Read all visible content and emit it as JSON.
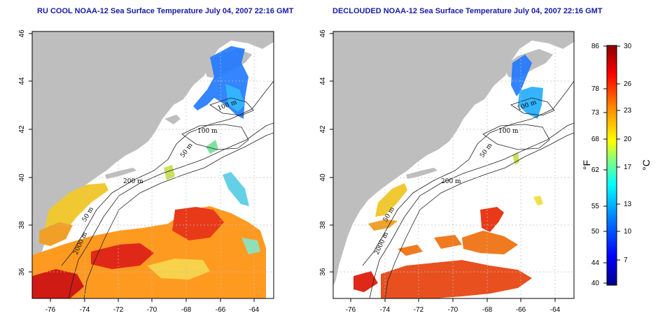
{
  "panels": [
    {
      "title": "RU COOL NOAA-12 Sea Surface Temperature July 04, 2007 22:16 GMT",
      "x_ticks": [
        "-76",
        "-74",
        "-72",
        "-70",
        "-68",
        "-66",
        "-64"
      ],
      "y_ticks": [
        "36",
        "38",
        "40",
        "42",
        "44",
        "46"
      ],
      "contour_labels": [
        "100 m",
        "50 m",
        "200 m",
        "50 m",
        "2000 m",
        "100 m"
      ]
    },
    {
      "title": "DECLOUDED NOAA-12 Sea Surface Temperature July 04, 2007 22:16 GMT",
      "x_ticks": [
        "-76",
        "-74",
        "-72",
        "-70",
        "-68",
        "-66",
        "-64"
      ],
      "y_ticks": [
        "36",
        "38",
        "40",
        "42",
        "44",
        "46"
      ],
      "contour_labels": [
        "100 m",
        "50 m",
        "200 m",
        "50 m",
        "2000 m",
        "100 m"
      ]
    }
  ],
  "colorbar": {
    "fahrenheit_ticks": [
      "86",
      "78",
      "73",
      "68",
      "62",
      "55",
      "50",
      "44",
      "40"
    ],
    "celsius_ticks": [
      "30",
      "26",
      "23",
      "20",
      "17",
      "13",
      "10",
      "7"
    ],
    "f_unit": "°F",
    "c_unit": "°C",
    "colors": [
      "#00008b",
      "#0000ff",
      "#0080ff",
      "#00ffff",
      "#80ff80",
      "#ffff00",
      "#ff8000",
      "#ff0000",
      "#8b0000"
    ]
  },
  "colors": {
    "land": "#bebebe",
    "water": "#ffffff",
    "title": "#1a1aa6"
  }
}
